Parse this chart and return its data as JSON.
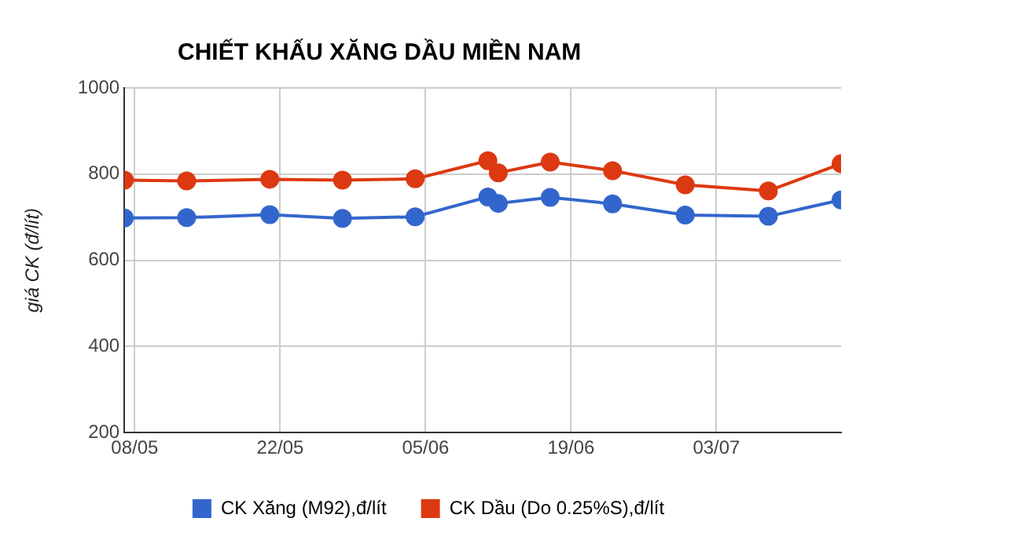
{
  "chart_data": {
    "type": "line",
    "title": "CHIẾT KHẤU XĂNG DẦU MIỀN NAM",
    "ylabel": "giá CK (đ/lít)",
    "x": [
      "--05-07",
      "--05-13",
      "--05-21",
      "--05-28",
      "--06-04",
      "--06-11",
      "--06-12",
      "--06-17",
      "--06-23",
      "--06-30",
      "--07-08",
      "--07-15"
    ],
    "series": [
      {
        "name": "CK Xăng (M92),đ/lít",
        "color": "#3366cc",
        "values": [
          698,
          699,
          706,
          697,
          701,
          747,
          732,
          746,
          731,
          705,
          702,
          740
        ]
      },
      {
        "name": "CK Dầu (Do 0.25%S),đ/lít",
        "color": "#dc3912",
        "values": [
          786,
          784,
          788,
          786,
          789,
          831,
          803,
          828,
          808,
          775,
          761,
          824
        ]
      }
    ],
    "xlim": [
      "--05-07",
      "--07-15"
    ],
    "xticks": [
      {
        "value": "--05-08",
        "label": "08/05"
      },
      {
        "value": "--05-22",
        "label": "22/05"
      },
      {
        "value": "--06-05",
        "label": "05/06"
      },
      {
        "value": "--06-19",
        "label": "19/06"
      },
      {
        "value": "--07-03",
        "label": "03/07"
      }
    ],
    "ylim": [
      200,
      1000
    ],
    "yticks": [
      200,
      400,
      600,
      800,
      1000
    ],
    "grid": true,
    "legend": "bottom",
    "marker": "circle",
    "line_style": "solid"
  }
}
